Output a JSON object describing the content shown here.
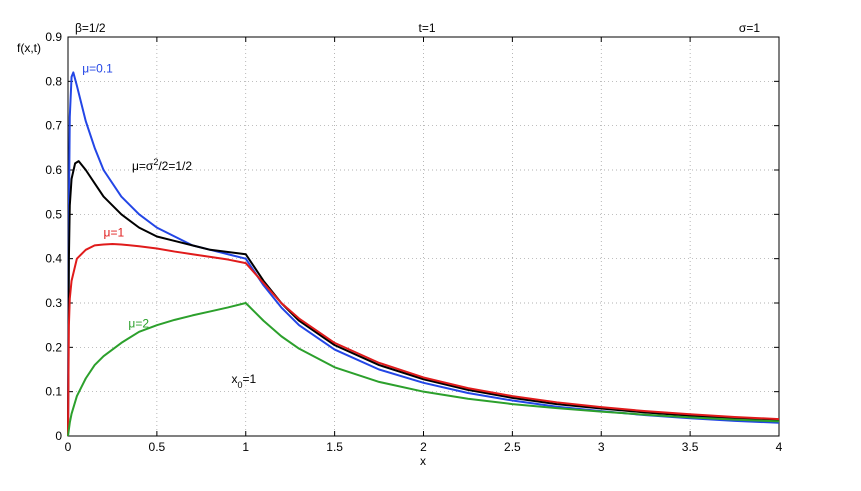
{
  "chart_data": {
    "type": "line",
    "title": "t=1",
    "left_header": "β=1/2",
    "right_header": "σ=1",
    "xlabel": "x",
    "ylabel": "f(x,t)",
    "xlim": [
      0,
      4
    ],
    "ylim": [
      0,
      0.9
    ],
    "x_ticks": [
      "0",
      "0.5",
      "1",
      "1.5",
      "2",
      "2.5",
      "3",
      "3.5",
      "4"
    ],
    "y_ticks": [
      "0",
      "0.1",
      "0.2",
      "0.3",
      "0.4",
      "0.5",
      "0.6",
      "0.7",
      "0.8",
      "0.9"
    ],
    "grid": true,
    "series": [
      {
        "name": "μ=0.1",
        "color": "#2346e6",
        "points": [
          [
            0,
            0.0
          ],
          [
            0.005,
            0.5
          ],
          [
            0.01,
            0.72
          ],
          [
            0.02,
            0.81
          ],
          [
            0.03,
            0.82
          ],
          [
            0.05,
            0.79
          ],
          [
            0.1,
            0.71
          ],
          [
            0.15,
            0.65
          ],
          [
            0.2,
            0.6
          ],
          [
            0.3,
            0.54
          ],
          [
            0.4,
            0.5
          ],
          [
            0.5,
            0.47
          ],
          [
            0.6,
            0.45
          ],
          [
            0.7,
            0.43
          ],
          [
            0.8,
            0.42
          ],
          [
            0.9,
            0.41
          ],
          [
            1.0,
            0.4
          ],
          [
            1.1,
            0.34
          ],
          [
            1.2,
            0.29
          ],
          [
            1.3,
            0.25
          ],
          [
            1.5,
            0.195
          ],
          [
            1.75,
            0.15
          ],
          [
            2.0,
            0.12
          ],
          [
            2.25,
            0.097
          ],
          [
            2.5,
            0.08
          ],
          [
            2.75,
            0.066
          ],
          [
            3.0,
            0.056
          ],
          [
            3.25,
            0.047
          ],
          [
            3.5,
            0.04
          ],
          [
            3.75,
            0.034
          ],
          [
            4.0,
            0.03
          ]
        ]
      },
      {
        "name": "μ=σ^2/2=1/2",
        "color": "#000000",
        "points": [
          [
            0,
            0.0
          ],
          [
            0.005,
            0.4
          ],
          [
            0.01,
            0.52
          ],
          [
            0.02,
            0.58
          ],
          [
            0.04,
            0.615
          ],
          [
            0.06,
            0.62
          ],
          [
            0.1,
            0.6
          ],
          [
            0.15,
            0.57
          ],
          [
            0.2,
            0.54
          ],
          [
            0.3,
            0.5
          ],
          [
            0.4,
            0.47
          ],
          [
            0.5,
            0.45
          ],
          [
            0.6,
            0.44
          ],
          [
            0.7,
            0.43
          ],
          [
            0.8,
            0.42
          ],
          [
            0.9,
            0.415
          ],
          [
            1.0,
            0.41
          ],
          [
            1.1,
            0.35
          ],
          [
            1.2,
            0.3
          ],
          [
            1.3,
            0.26
          ],
          [
            1.5,
            0.205
          ],
          [
            1.75,
            0.16
          ],
          [
            2.0,
            0.128
          ],
          [
            2.25,
            0.104
          ],
          [
            2.5,
            0.086
          ],
          [
            2.75,
            0.072
          ],
          [
            3.0,
            0.062
          ],
          [
            3.25,
            0.053
          ],
          [
            3.5,
            0.046
          ],
          [
            3.75,
            0.04
          ],
          [
            4.0,
            0.035
          ]
        ]
      },
      {
        "name": "μ=1",
        "color": "#e01b1b",
        "points": [
          [
            0,
            0.0
          ],
          [
            0.005,
            0.25
          ],
          [
            0.01,
            0.31
          ],
          [
            0.02,
            0.35
          ],
          [
            0.05,
            0.4
          ],
          [
            0.1,
            0.42
          ],
          [
            0.15,
            0.43
          ],
          [
            0.2,
            0.432
          ],
          [
            0.25,
            0.433
          ],
          [
            0.3,
            0.432
          ],
          [
            0.4,
            0.428
          ],
          [
            0.5,
            0.423
          ],
          [
            0.6,
            0.416
          ],
          [
            0.7,
            0.41
          ],
          [
            0.8,
            0.404
          ],
          [
            0.9,
            0.398
          ],
          [
            1.0,
            0.39
          ],
          [
            1.1,
            0.345
          ],
          [
            1.2,
            0.3
          ],
          [
            1.3,
            0.265
          ],
          [
            1.5,
            0.21
          ],
          [
            1.75,
            0.165
          ],
          [
            2.0,
            0.132
          ],
          [
            2.25,
            0.108
          ],
          [
            2.5,
            0.09
          ],
          [
            2.75,
            0.076
          ],
          [
            3.0,
            0.065
          ],
          [
            3.25,
            0.056
          ],
          [
            3.5,
            0.049
          ],
          [
            3.75,
            0.043
          ],
          [
            4.0,
            0.038
          ]
        ]
      },
      {
        "name": "μ=2",
        "color": "#2ca02c",
        "points": [
          [
            0,
            0.0
          ],
          [
            0.01,
            0.03
          ],
          [
            0.02,
            0.05
          ],
          [
            0.05,
            0.09
          ],
          [
            0.1,
            0.13
          ],
          [
            0.15,
            0.16
          ],
          [
            0.2,
            0.18
          ],
          [
            0.3,
            0.21
          ],
          [
            0.4,
            0.235
          ],
          [
            0.5,
            0.25
          ],
          [
            0.6,
            0.262
          ],
          [
            0.7,
            0.272
          ],
          [
            0.8,
            0.281
          ],
          [
            0.9,
            0.29
          ],
          [
            1.0,
            0.3
          ],
          [
            1.1,
            0.26
          ],
          [
            1.2,
            0.225
          ],
          [
            1.3,
            0.197
          ],
          [
            1.5,
            0.155
          ],
          [
            1.75,
            0.122
          ],
          [
            2.0,
            0.1
          ],
          [
            2.25,
            0.084
          ],
          [
            2.5,
            0.072
          ],
          [
            2.75,
            0.063
          ],
          [
            3.0,
            0.055
          ],
          [
            3.25,
            0.048
          ],
          [
            3.5,
            0.042
          ],
          [
            3.75,
            0.037
          ],
          [
            4.0,
            0.033
          ]
        ]
      }
    ],
    "annotations": [
      {
        "id": "mu01",
        "text": "μ=0.1",
        "x": 0.08,
        "y": 0.82,
        "color": "#2346e6"
      },
      {
        "id": "muhalf",
        "base": "μ=σ",
        "sup": "2",
        "rest": "/2=1/2",
        "x": 0.36,
        "y": 0.6,
        "color": "#000000"
      },
      {
        "id": "mu1",
        "text": "μ=1",
        "x": 0.2,
        "y": 0.45,
        "color": "#e01b1b"
      },
      {
        "id": "mu2",
        "text": "μ=2",
        "x": 0.34,
        "y": 0.245,
        "color": "#2ca02c"
      },
      {
        "id": "x0",
        "base": "x",
        "sub": "0",
        "rest": "=1",
        "x": 0.92,
        "y": 0.12,
        "color": "#000000"
      }
    ]
  }
}
